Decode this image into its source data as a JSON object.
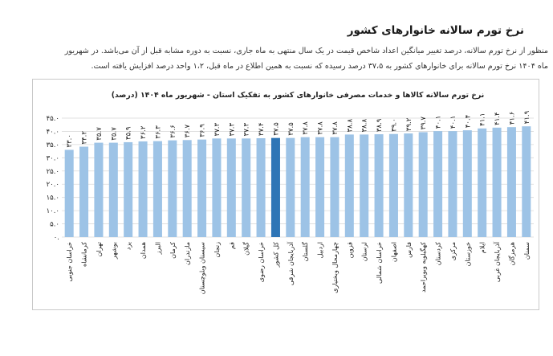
{
  "article": {
    "heading": "نرخ تورم سالانه خانوارهای کشور",
    "paragraph_line1": "منظور از نرخ تورم سالانه، درصد تغییر میانگین اعداد شاخص قیمت در یک سال منتهی به ماه جاری، نسبت به دوره مشابه قبل از آن می‌باشد. در شهریور",
    "paragraph_line2": "ماه ۱۴۰۴ نرخ تورم سالانه برای خانوارهای کشور به ۳۷،۵ درصد رسیده که نسبت به همین اطلاع در ماه قبل، ۱،۲ واحد درصد افزایش یافته است."
  },
  "chart_data": {
    "type": "bar",
    "title": "نرخ تورم سالانه کالاها و خدمات مصرفی خانوارهای کشور به تفکیک استان - شهریور ماه ۱۴۰۴ (درصد)",
    "xlabel": "",
    "ylabel": "",
    "ylim": [
      0,
      45
    ],
    "yticks": [
      0,
      5,
      10,
      15,
      20,
      25,
      30,
      35,
      40,
      45
    ],
    "ytick_labels": [
      "۰.",
      "۵.۰",
      "۱۰.۰",
      "۱۵.۰",
      "۲۰.۰",
      "۲۵.۰",
      "۳۰.۰",
      "۳۵.۰",
      "۴۰.۰",
      "۴۵.۰"
    ],
    "grid": true,
    "categories": [
      "خراسان جنوبی",
      "کرمانشاه",
      "تهران",
      "بوشهر",
      "یزد",
      "همدان",
      "البرز",
      "کرمان",
      "مازندران",
      "سیستان وبلوچستان",
      "زنجان",
      "قم",
      "گیلان",
      "خراسان رضوی",
      "کل کشور",
      "آذربایجان شرقی",
      "گلستان",
      "اردبیل",
      "چهارمحال وبختیاری",
      "قزوین",
      "لرستان",
      "خراسان شمالی",
      "اصفهان",
      "فارس",
      "کهگیلویه وبویراحمد",
      "کردستان",
      "مرکزی",
      "خوزستان",
      "ایلام",
      "آذربایجان غربی",
      "هرمزگان",
      "سمنان"
    ],
    "values": [
      33.0,
      34.2,
      35.7,
      35.7,
      35.9,
      36.2,
      36.3,
      36.6,
      36.7,
      36.9,
      37.3,
      37.3,
      37.3,
      37.4,
      37.5,
      37.5,
      37.8,
      37.8,
      37.8,
      38.8,
      38.8,
      38.9,
      39.0,
      39.2,
      39.7,
      40.1,
      40.1,
      40.4,
      41.1,
      41.4,
      41.6,
      41.9
    ],
    "value_labels": [
      "۳۳.۰",
      "۳۴.۲",
      "۳۵.۷",
      "۳۵.۷",
      "۳۵.۹",
      "۳۶.۲",
      "۳۶.۳",
      "۳۶.۶",
      "۳۶.۷",
      "۳۶.۹",
      "۳۷.۳",
      "۳۷.۳",
      "۳۷.۳",
      "۳۷.۴",
      "۳۷.۵",
      "۳۷.۵",
      "۳۷.۸",
      "۳۷.۸",
      "۳۷.۸",
      "۳۸.۸",
      "۳۸.۸",
      "۳۸.۹",
      "۳۹.۰",
      "۳۹.۲",
      "۳۹.۷",
      "۴۰.۱",
      "۴۰.۱",
      "۴۰.۴",
      "۴۱.۱",
      "۴۱.۴",
      "۴۱.۶",
      "۴۱.۹"
    ],
    "highlight_category": "کل کشور",
    "colors": {
      "bar": "#9dc3e6",
      "highlight": "#2e75b6",
      "grid": "#d9d9d9",
      "text": "#222222"
    }
  }
}
